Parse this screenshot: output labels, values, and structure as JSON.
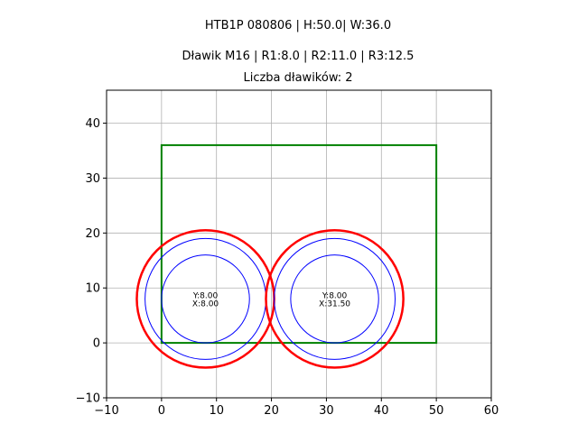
{
  "chart_data": {
    "type": "scatter",
    "title_lines": [
      "HTB1P 080806 | H:50.0| W:36.0",
      "Dławik M16 | R1:8.0 | R2:11.0 | R3:12.5",
      "Liczba dławików: 2"
    ],
    "xlim": [
      -10,
      60
    ],
    "ylim": [
      -10,
      46
    ],
    "x_ticks": [
      -10,
      0,
      10,
      20,
      30,
      40,
      50,
      60
    ],
    "y_ticks": [
      -10,
      0,
      10,
      20,
      30,
      40
    ],
    "x_tick_labels": [
      "−10",
      "0",
      "10",
      "20",
      "30",
      "40",
      "50",
      "60"
    ],
    "y_tick_labels": [
      "−10",
      "0",
      "10",
      "20",
      "30",
      "40"
    ],
    "grid": true,
    "rectangle": {
      "x": [
        0,
        50
      ],
      "y": [
        0,
        36
      ],
      "color": "#008000"
    },
    "circles": [
      {
        "cx": 8.0,
        "cy": 8.0,
        "radii": [
          8.0,
          11.0,
          12.5
        ],
        "label_y": "Y:8.00",
        "label_x": "X:8.00"
      },
      {
        "cx": 31.5,
        "cy": 8.0,
        "radii": [
          8.0,
          11.0,
          12.5
        ],
        "label_y": "Y:8.00",
        "label_x": "X:31.50"
      }
    ],
    "colors": {
      "r1": "#0000ff",
      "r2": "#0000ff",
      "r3": "#ff0000",
      "grid": "#b0b0b0"
    }
  }
}
